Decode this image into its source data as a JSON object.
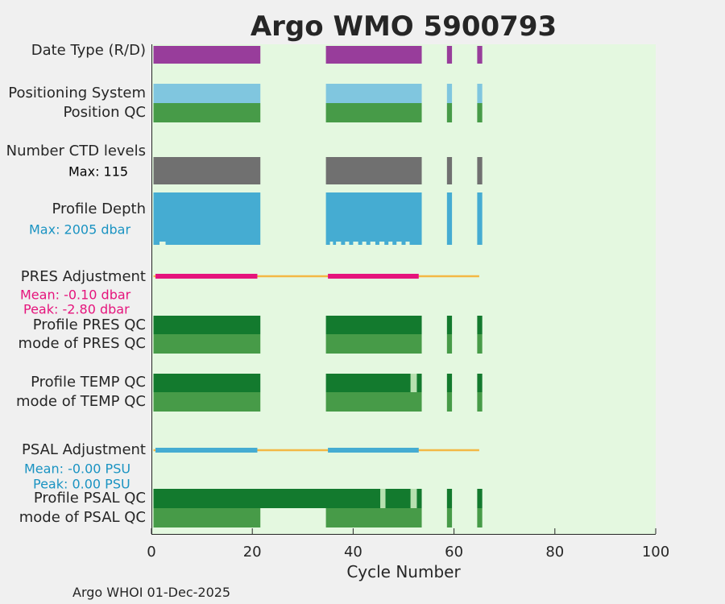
{
  "chart_data": {
    "type": "timeline",
    "title": "Argo WMO 5900793",
    "xlabel": "Cycle Number",
    "xlim": [
      0,
      100
    ],
    "xticks": [
      0,
      20,
      40,
      60,
      80,
      100
    ],
    "footer": "Argo WHOI 01-Dec-2025",
    "colors": {
      "title": "#0e8fc0",
      "background": "#e4f8e0",
      "purple": "#983d9b",
      "lightblue": "#80c6df",
      "medgreen": "#479b48",
      "darkgreen": "#137a2e",
      "gray": "#707070",
      "depthblue": "#45acd2",
      "pink": "#e5147c",
      "orange": "#f3b845",
      "psalblue": "#45acd2",
      "paleqc": "#b7e0b0",
      "annot_blue": "#1a93c2",
      "annot_pink": "#e5147c"
    },
    "cycle_ranges": [
      [
        0.4,
        21.6
      ],
      [
        34.6,
        53.6
      ],
      [
        58.6,
        59.6
      ],
      [
        64.6,
        65.6
      ]
    ],
    "rows": [
      {
        "label": "Date Type (R/D)",
        "color": "purple",
        "segments": [
          [
            0.4,
            21.6
          ],
          [
            34.6,
            53.6
          ],
          [
            58.6,
            59.6
          ],
          [
            64.6,
            65.6
          ]
        ]
      },
      {
        "label": "Positioning System",
        "color": "lightblue",
        "segments": [
          [
            0.4,
            21.6
          ],
          [
            34.6,
            53.6
          ],
          [
            58.6,
            59.6
          ],
          [
            64.6,
            65.6
          ]
        ]
      },
      {
        "label": "Position QC",
        "color": "medgreen",
        "segments": [
          [
            0.4,
            21.6
          ],
          [
            34.6,
            53.6
          ],
          [
            58.6,
            59.6
          ],
          [
            64.6,
            65.6
          ]
        ]
      },
      {
        "label": "Number CTD levels",
        "annotation": "Max: 115",
        "color": "gray",
        "segments": [
          [
            0.4,
            21.6
          ],
          [
            34.6,
            53.6
          ],
          [
            58.6,
            59.6
          ],
          [
            64.6,
            65.6
          ]
        ]
      },
      {
        "label": "Profile Depth",
        "annotation": "Max: 2005 dbar",
        "color": "depthblue",
        "segments": [
          [
            0.4,
            21.6
          ],
          [
            34.6,
            53.6
          ],
          [
            58.6,
            59.6
          ],
          [
            64.6,
            65.6
          ]
        ]
      },
      {
        "label": "PRES Adjustment",
        "annotations": [
          "Mean: -0.10 dbar",
          "Peak: -2.80 dbar"
        ],
        "line": "orange",
        "line_range": [
          0.4,
          65.0
        ],
        "color": "pink",
        "segments": [
          [
            0.8,
            21.0
          ],
          [
            35.0,
            53.0
          ]
        ]
      },
      {
        "label": "Profile PRES QC",
        "color": "darkgreen",
        "segments": [
          [
            0.4,
            21.6
          ],
          [
            34.6,
            53.6
          ],
          [
            58.6,
            59.6
          ],
          [
            64.6,
            65.6
          ]
        ]
      },
      {
        "label": "mode of PRES QC",
        "color": "medgreen",
        "segments": [
          [
            0.4,
            21.6
          ],
          [
            34.6,
            53.6
          ],
          [
            58.6,
            59.6
          ],
          [
            64.6,
            65.6
          ]
        ]
      },
      {
        "label": "Profile TEMP QC",
        "color": "darkgreen",
        "segments": [
          [
            0.4,
            21.6
          ],
          [
            34.6,
            51.4
          ],
          [
            52.6,
            53.6
          ],
          [
            58.6,
            59.6
          ],
          [
            64.6,
            65.6
          ]
        ],
        "pale_segments": [
          [
            51.4,
            52.6
          ]
        ]
      },
      {
        "label": "mode of TEMP QC",
        "color": "medgreen",
        "segments": [
          [
            0.4,
            21.6
          ],
          [
            34.6,
            53.6
          ],
          [
            58.6,
            59.6
          ],
          [
            64.6,
            65.6
          ]
        ]
      },
      {
        "label": "PSAL Adjustment",
        "annotations": [
          "Mean: -0.00 PSU",
          "Peak: 0.00 PSU"
        ],
        "line": "orange",
        "line_range": [
          0.4,
          65.0
        ],
        "color": "psalblue",
        "segments": [
          [
            0.8,
            21.0
          ],
          [
            35.0,
            53.0
          ]
        ]
      },
      {
        "label": "Profile PSAL QC",
        "color": "darkgreen",
        "segments": [
          [
            0.4,
            45.4
          ],
          [
            46.4,
            51.4
          ],
          [
            52.6,
            53.6
          ],
          [
            58.6,
            59.6
          ],
          [
            64.6,
            65.6
          ]
        ],
        "gaps_removed": [
          [
            21.6,
            34.6
          ]
        ],
        "pale_segments": [
          [
            45.4,
            46.4
          ],
          [
            51.4,
            52.6
          ]
        ]
      },
      {
        "label": "mode of PSAL QC",
        "color": "medgreen",
        "segments": [
          [
            0.4,
            21.6
          ],
          [
            34.6,
            53.6
          ],
          [
            58.6,
            59.6
          ],
          [
            64.6,
            65.6
          ]
        ]
      }
    ]
  }
}
